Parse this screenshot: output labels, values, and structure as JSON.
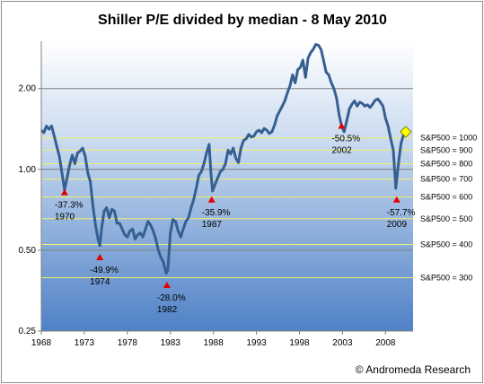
{
  "chart_data": {
    "type": "line",
    "title": "Shiller P/E divided by median - 8 May 2010",
    "credit": "© Andromeda Research",
    "y_scale": "log",
    "ylim": [
      0.25,
      3.0
    ],
    "xlim": [
      1968,
      2011.2
    ],
    "x_ticks": [
      {
        "value": 1968,
        "label": "1968"
      },
      {
        "value": 1973,
        "label": "1973"
      },
      {
        "value": 1978,
        "label": "1978"
      },
      {
        "value": 1983,
        "label": "1983"
      },
      {
        "value": 1988,
        "label": "1988"
      },
      {
        "value": 1993,
        "label": "1993"
      },
      {
        "value": 1998,
        "label": "1998"
      },
      {
        "value": 2003,
        "label": "2003"
      },
      {
        "value": 2008,
        "label": "2008"
      }
    ],
    "y_ticks": [
      {
        "value": 0.25,
        "label": "0.25"
      },
      {
        "value": 0.5,
        "label": "0.50"
      },
      {
        "value": 1.0,
        "label": "1.00"
      },
      {
        "value": 2.0,
        "label": "2.00"
      }
    ],
    "reference_lines": [
      {
        "value": 1.31,
        "label": "S&P500 = 1000"
      },
      {
        "value": 1.18,
        "label": "S&P500 = 900"
      },
      {
        "value": 1.05,
        "label": "S&P500 = 800"
      },
      {
        "value": 0.92,
        "label": "S&P500 = 700"
      },
      {
        "value": 0.79,
        "label": "S&P500 = 600"
      },
      {
        "value": 0.655,
        "label": "S&P500 = 500"
      },
      {
        "value": 0.525,
        "label": "S&P500 = 400"
      },
      {
        "value": 0.395,
        "label": "S&P500 = 300"
      }
    ],
    "annotations": [
      {
        "x": 1970.7,
        "y": 0.82,
        "pct": "-37.3%",
        "year": "1970"
      },
      {
        "x": 1974.8,
        "y": 0.47,
        "pct": "-49.9%",
        "year": "1974"
      },
      {
        "x": 1982.6,
        "y": 0.37,
        "pct": "-28.0%",
        "year": "1982"
      },
      {
        "x": 1987.8,
        "y": 0.77,
        "pct": "-35.9%",
        "year": "1987"
      },
      {
        "x": 2002.9,
        "y": 1.45,
        "pct": "-50.5%",
        "year": "2002"
      },
      {
        "x": 2009.3,
        "y": 0.77,
        "pct": "-57.7%",
        "year": "2009"
      }
    ],
    "current_point": {
      "x": 2010.35,
      "y": 1.38
    },
    "series": [
      {
        "x": [
          1968.0,
          1968.3,
          1968.6,
          1968.9,
          1969.2,
          1969.5,
          1969.8,
          1970.1,
          1970.4,
          1970.7,
          1971.0,
          1971.3,
          1971.6,
          1971.9,
          1972.2,
          1972.5,
          1972.8,
          1973.1,
          1973.4,
          1973.7,
          1974.0,
          1974.3,
          1974.6,
          1974.8,
          1975.0,
          1975.3,
          1975.6,
          1975.9,
          1976.2,
          1976.5,
          1976.8,
          1977.1,
          1977.4,
          1977.7,
          1978.0,
          1978.3,
          1978.6,
          1978.9,
          1979.2,
          1979.5,
          1979.8,
          1980.1,
          1980.4,
          1980.7,
          1981.0,
          1981.3,
          1981.6,
          1981.9,
          1982.2,
          1982.5,
          1982.7,
          1983.0,
          1983.3,
          1983.6,
          1983.9,
          1984.2,
          1984.5,
          1984.8,
          1985.1,
          1985.4,
          1985.7,
          1986.0,
          1986.3,
          1986.6,
          1986.9,
          1987.2,
          1987.5,
          1987.7,
          1987.9,
          1988.2,
          1988.5,
          1988.8,
          1989.1,
          1989.4,
          1989.7,
          1990.0,
          1990.3,
          1990.6,
          1990.9,
          1991.2,
          1991.5,
          1991.8,
          1992.1,
          1992.4,
          1992.7,
          1993.0,
          1993.3,
          1993.6,
          1993.9,
          1994.2,
          1994.5,
          1994.8,
          1995.1,
          1995.4,
          1995.7,
          1996.0,
          1996.3,
          1996.6,
          1996.9,
          1997.2,
          1997.5,
          1997.8,
          1998.1,
          1998.4,
          1998.7,
          1999.0,
          1999.3,
          1999.6,
          1999.9,
          2000.2,
          2000.5,
          2000.8,
          2001.1,
          2001.4,
          2001.7,
          2002.0,
          2002.3,
          2002.6,
          2002.9,
          2003.2,
          2003.5,
          2003.8,
          2004.1,
          2004.4,
          2004.7,
          2005.0,
          2005.3,
          2005.6,
          2005.9,
          2006.2,
          2006.5,
          2006.8,
          2007.1,
          2007.4,
          2007.7,
          2008.0,
          2008.3,
          2008.6,
          2008.9,
          2009.2,
          2009.5,
          2009.8,
          2010.1,
          2010.35
        ],
        "y": [
          1.4,
          1.37,
          1.45,
          1.41,
          1.45,
          1.33,
          1.22,
          1.12,
          0.97,
          0.84,
          0.93,
          1.04,
          1.13,
          1.05,
          1.15,
          1.17,
          1.2,
          1.12,
          0.97,
          0.9,
          0.73,
          0.62,
          0.55,
          0.52,
          0.6,
          0.7,
          0.72,
          0.66,
          0.71,
          0.7,
          0.63,
          0.63,
          0.6,
          0.57,
          0.56,
          0.59,
          0.6,
          0.55,
          0.57,
          0.58,
          0.56,
          0.6,
          0.64,
          0.62,
          0.59,
          0.55,
          0.5,
          0.47,
          0.45,
          0.41,
          0.42,
          0.58,
          0.65,
          0.64,
          0.59,
          0.56,
          0.6,
          0.64,
          0.66,
          0.72,
          0.77,
          0.85,
          0.95,
          0.98,
          1.05,
          1.15,
          1.24,
          0.98,
          0.83,
          0.88,
          0.93,
          0.98,
          1.0,
          1.05,
          1.18,
          1.14,
          1.2,
          1.1,
          1.06,
          1.2,
          1.28,
          1.3,
          1.35,
          1.32,
          1.33,
          1.38,
          1.4,
          1.37,
          1.42,
          1.4,
          1.36,
          1.38,
          1.46,
          1.58,
          1.65,
          1.72,
          1.8,
          1.93,
          2.05,
          2.25,
          2.1,
          2.35,
          2.4,
          2.55,
          2.2,
          2.6,
          2.72,
          2.8,
          2.92,
          2.9,
          2.8,
          2.55,
          2.3,
          2.25,
          2.1,
          2.0,
          1.85,
          1.6,
          1.45,
          1.38,
          1.52,
          1.68,
          1.75,
          1.8,
          1.72,
          1.78,
          1.76,
          1.72,
          1.74,
          1.7,
          1.75,
          1.81,
          1.83,
          1.78,
          1.72,
          1.55,
          1.45,
          1.3,
          1.18,
          0.85,
          1.05,
          1.25,
          1.35,
          1.38
        ]
      }
    ]
  }
}
